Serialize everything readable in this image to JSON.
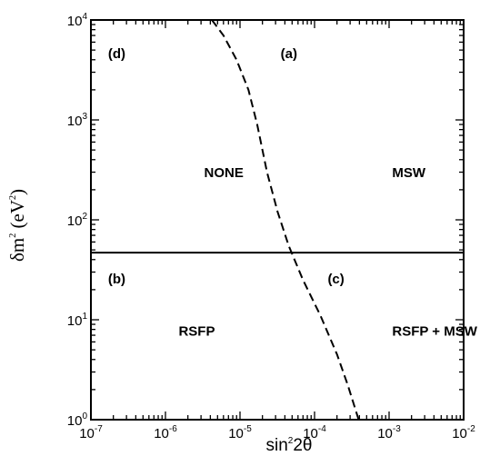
{
  "chart_data": {
    "type": "line",
    "xlabel": {
      "base": "sin",
      "exp": "2",
      "rest": "2θ"
    },
    "ylabel": {
      "prefix": "δm",
      "exp": "2",
      "mid": " (eV",
      "unit_exp": "2",
      "suffix": ")"
    },
    "x_scale": "log",
    "y_scale": "log",
    "xlim": [
      1e-07,
      0.01
    ],
    "ylim": [
      1,
      10000
    ],
    "x_ticks": [
      {
        "base": "10",
        "exp": "-7",
        "value": 1e-07
      },
      {
        "base": "10",
        "exp": "-6",
        "value": 1e-06
      },
      {
        "base": "10",
        "exp": "-5",
        "value": 1e-05
      },
      {
        "base": "10",
        "exp": "-4",
        "value": 0.0001
      },
      {
        "base": "10",
        "exp": "-3",
        "value": 0.001
      },
      {
        "base": "10",
        "exp": "-2",
        "value": 0.01
      }
    ],
    "y_ticks": [
      {
        "base": "10",
        "exp": "0",
        "value": 1
      },
      {
        "base": "10",
        "exp": "1",
        "value": 10
      },
      {
        "base": "10",
        "exp": "2",
        "value": 100
      },
      {
        "base": "10",
        "exp": "3",
        "value": 1000
      },
      {
        "base": "10",
        "exp": "4",
        "value": 10000
      }
    ],
    "series": [
      {
        "style": "solid",
        "x": [
          1e-07,
          0.01
        ],
        "y": [
          47,
          47
        ]
      },
      {
        "style": "dashed",
        "x": [
          4.2e-06,
          6e-06,
          9e-06,
          1.3e-05,
          1.7e-05,
          2.3e-05,
          3.2e-05,
          4.5e-05,
          7e-05,
          0.00012,
          0.0002,
          0.00028,
          0.00039
        ],
        "y": [
          10000,
          7000,
          4000,
          2000,
          900,
          300,
          120,
          55,
          25,
          11,
          4.5,
          2.2,
          1
        ]
      }
    ],
    "annotations": [
      {
        "text": "(d)",
        "x": 1.7e-07,
        "y": 4500
      },
      {
        "text": "(a)",
        "x": 3.5e-05,
        "y": 4500
      },
      {
        "text": "NONE",
        "x": 3.3e-06,
        "y": 290
      },
      {
        "text": "MSW",
        "x": 0.0011,
        "y": 290
      },
      {
        "text": "(b)",
        "x": 1.7e-07,
        "y": 25
      },
      {
        "text": "(c)",
        "x": 0.00015,
        "y": 25
      },
      {
        "text": "RSFP",
        "x": 1.5e-06,
        "y": 7.5
      },
      {
        "text": "RSFP + MSW",
        "x": 0.0011,
        "y": 7.5
      }
    ]
  }
}
